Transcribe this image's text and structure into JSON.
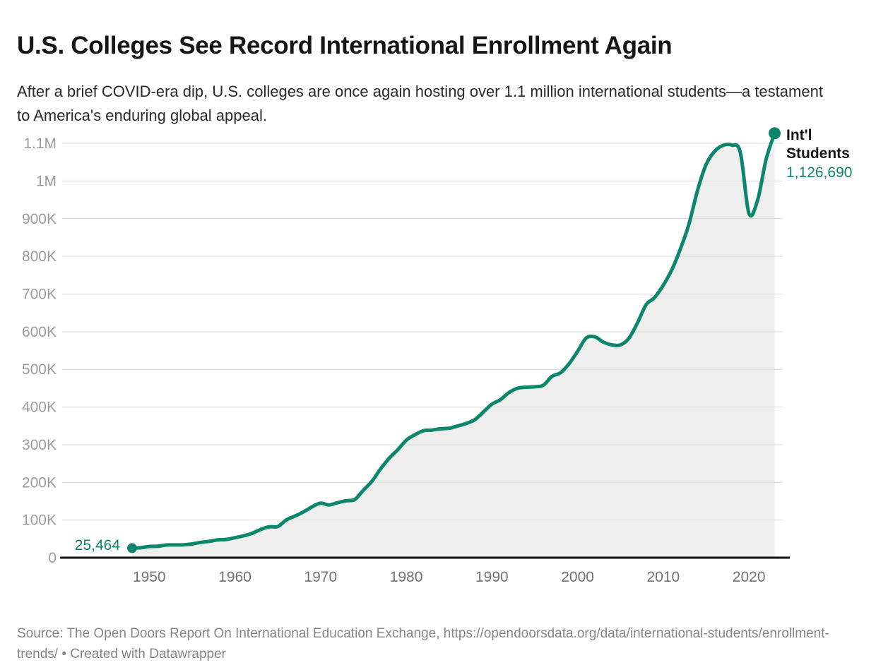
{
  "header": {
    "title": "U.S. Colleges See Record International Enrollment Again",
    "subtitle": "After a brief COVID-era dip, U.S. colleges are once again hosting over 1.1 million international students—a testament to America's enduring global appeal."
  },
  "annotations": {
    "start_value_label": "25,464",
    "series_label": "Int'l Students",
    "end_value_label": "1,126,690"
  },
  "footer": {
    "source": "Source: The Open Doors Report On International Education Exchange, https://opendoorsdata.org/data/international-students/enrollment-trends/ • Created with Datawrapper"
  },
  "chart_data": {
    "type": "area",
    "title": "U.S. Colleges See Record International Enrollment Again",
    "series_name": "Int'l Students",
    "line_color": "#0e866c",
    "area_color": "#eeeeee",
    "grid_color": "#d9d9d9",
    "baseline_color": "#111111",
    "y_tick_color": "#9c9c9c",
    "x_tick_color": "#737373",
    "xlim": [
      1948,
      2023
    ],
    "ylim": [
      0,
      1100000
    ],
    "x_ticks": [
      1950,
      1960,
      1970,
      1980,
      1990,
      2000,
      2010,
      2020
    ],
    "y_ticks": [
      {
        "label": "0",
        "value": 0
      },
      {
        "label": "100K",
        "value": 100000
      },
      {
        "label": "200K",
        "value": 200000
      },
      {
        "label": "300K",
        "value": 300000
      },
      {
        "label": "400K",
        "value": 400000
      },
      {
        "label": "500K",
        "value": 500000
      },
      {
        "label": "600K",
        "value": 600000
      },
      {
        "label": "700K",
        "value": 700000
      },
      {
        "label": "800K",
        "value": 800000
      },
      {
        "label": "900K",
        "value": 900000
      },
      {
        "label": "1M",
        "value": 1000000
      },
      {
        "label": "1.1M",
        "value": 1100000
      }
    ],
    "x": [
      1948,
      1949,
      1950,
      1951,
      1952,
      1953,
      1954,
      1955,
      1956,
      1957,
      1958,
      1959,
      1960,
      1961,
      1962,
      1963,
      1964,
      1965,
      1966,
      1967,
      1968,
      1969,
      1970,
      1971,
      1972,
      1973,
      1974,
      1975,
      1976,
      1977,
      1978,
      1979,
      1980,
      1981,
      1982,
      1983,
      1984,
      1985,
      1986,
      1987,
      1988,
      1989,
      1990,
      1991,
      1992,
      1993,
      1994,
      1995,
      1996,
      1997,
      1998,
      1999,
      2000,
      2001,
      2002,
      2003,
      2004,
      2005,
      2006,
      2007,
      2008,
      2009,
      2010,
      2011,
      2012,
      2013,
      2014,
      2015,
      2016,
      2017,
      2018,
      2019,
      2020,
      2021,
      2022,
      2023
    ],
    "values": [
      25464,
      26433,
      29813,
      30462,
      33675,
      33833,
      34232,
      36494,
      40666,
      43391,
      47245,
      48486,
      53107,
      58086,
      64705,
      74814,
      82045,
      82709,
      100262,
      110315,
      121362,
      134959,
      144708,
      140126,
      146097,
      151066,
      154580,
      179344,
      203068,
      235509,
      263938,
      286343,
      311882,
      326299,
      336985,
      338894,
      342113,
      343777,
      349609,
      356187,
      366354,
      386851,
      407529,
      419585,
      438618,
      449749,
      452635,
      453787,
      457984,
      481280,
      490933,
      514723,
      547867,
      582996,
      586323,
      572509,
      565039,
      564766,
      582984,
      623805,
      671616,
      690923,
      723277,
      764495,
      819644,
      886052,
      974926,
      1043839,
      1078822,
      1094792,
      1095299,
      1075496,
      914095,
      948519,
      1057188,
      1126690
    ]
  }
}
